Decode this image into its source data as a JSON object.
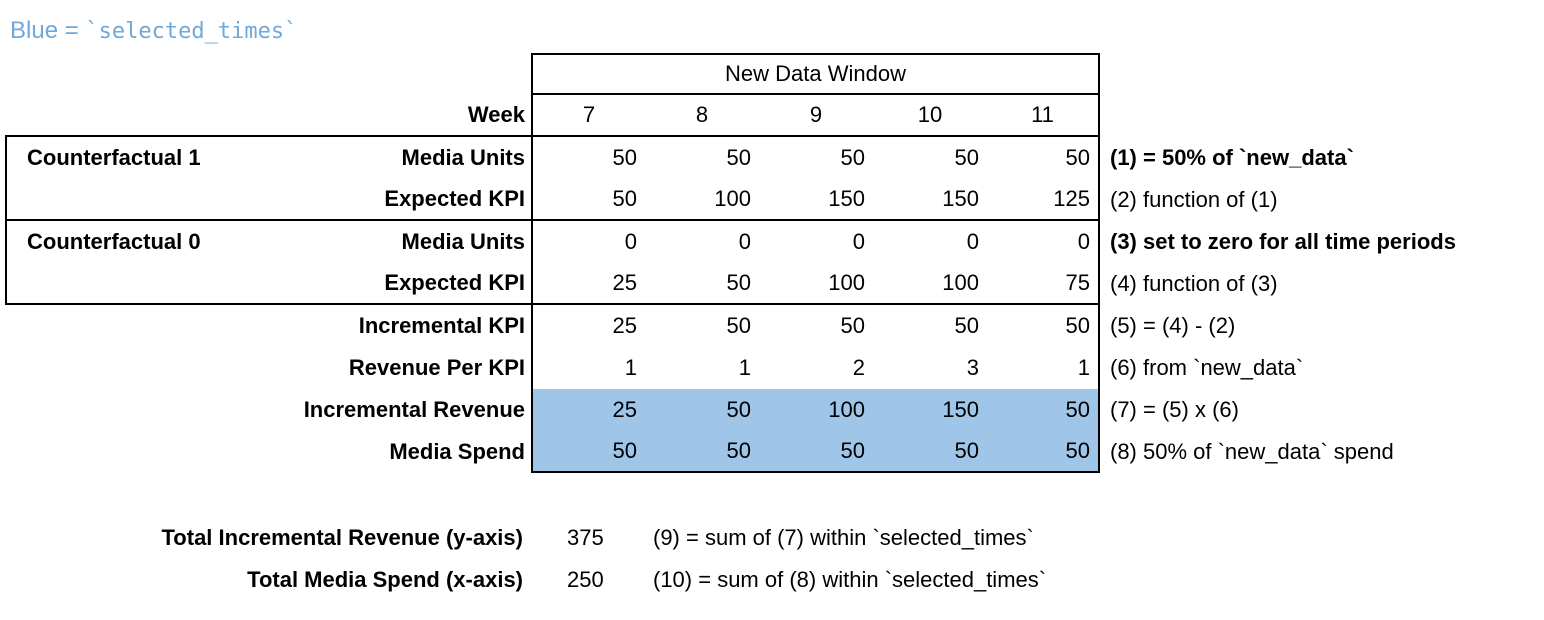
{
  "note": {
    "prefix": "Blue = ",
    "code": "`selected_times`"
  },
  "colors": {
    "highlight": "#9FC5E8",
    "note_text": "#6FA8DC",
    "border": "#000000"
  },
  "table": {
    "header": "New Data Window",
    "week_label": "Week",
    "weeks": [
      "7",
      "8",
      "9",
      "10",
      "11"
    ],
    "rows": [
      {
        "group": "Counterfactual 1",
        "label": "Media Units",
        "values": [
          "50",
          "50",
          "50",
          "50",
          "50"
        ],
        "note": "(1) = 50% of `new_data`",
        "note_bold": true,
        "highlight": false
      },
      {
        "group": "",
        "label": "Expected KPI",
        "values": [
          "50",
          "100",
          "150",
          "150",
          "125"
        ],
        "note": "(2) function of (1)",
        "note_bold": false,
        "highlight": false
      },
      {
        "group": "Counterfactual 0",
        "label": "Media Units",
        "values": [
          "0",
          "0",
          "0",
          "0",
          "0"
        ],
        "note": "(3) set to zero for all time periods",
        "note_bold": true,
        "highlight": false
      },
      {
        "group": "",
        "label": "Expected KPI",
        "values": [
          "25",
          "50",
          "100",
          "100",
          "75"
        ],
        "note": "(4) function of (3)",
        "note_bold": false,
        "highlight": false
      },
      {
        "group": "",
        "label": "Incremental KPI",
        "values": [
          "25",
          "50",
          "50",
          "50",
          "50"
        ],
        "note": "(5) = (4) - (2)",
        "note_bold": false,
        "highlight": false
      },
      {
        "group": "",
        "label": "Revenue Per KPI",
        "values": [
          "1",
          "1",
          "2",
          "3",
          "1"
        ],
        "note": "(6) from `new_data`",
        "note_bold": false,
        "highlight": false
      },
      {
        "group": "",
        "label": "Incremental Revenue",
        "values": [
          "25",
          "50",
          "100",
          "150",
          "50"
        ],
        "note": "(7) = (5) x (6)",
        "note_bold": false,
        "highlight": true
      },
      {
        "group": "",
        "label": "Media Spend",
        "values": [
          "50",
          "50",
          "50",
          "50",
          "50"
        ],
        "note": "(8) 50% of `new_data` spend",
        "note_bold": false,
        "highlight": true
      }
    ]
  },
  "totals": [
    {
      "label": "Total Incremental Revenue (y-axis)",
      "value": "375",
      "note": "(9) = sum of (7) within `selected_times`"
    },
    {
      "label": "Total Media Spend (x-axis)",
      "value": "250",
      "note": "(10) = sum of (8) within `selected_times`"
    }
  ]
}
